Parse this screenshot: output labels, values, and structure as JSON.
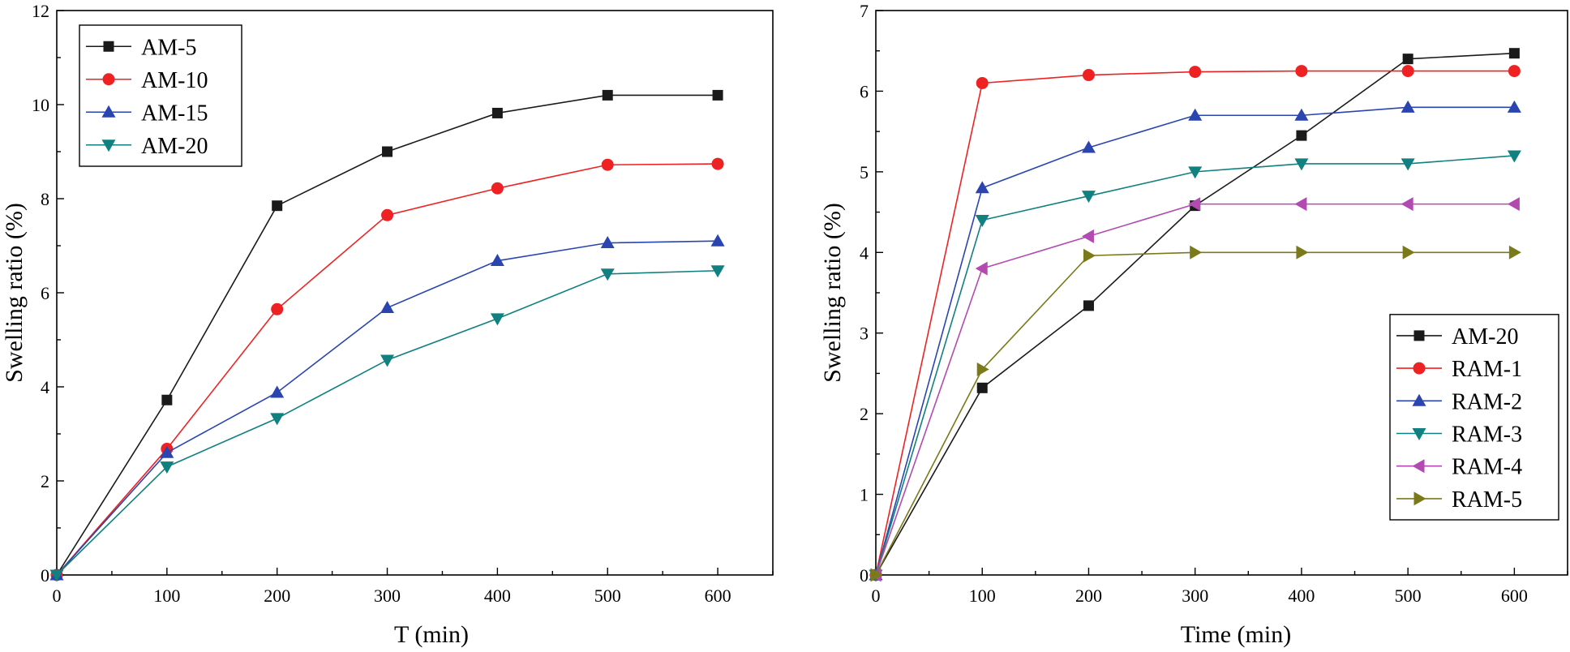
{
  "chart_data": [
    {
      "type": "line",
      "xlabel": "T (min)",
      "ylabel": "Swelling ratio (%)",
      "xlim": [
        0,
        650
      ],
      "ylim": [
        0,
        12
      ],
      "xticks": [
        "0",
        "100",
        "200",
        "300",
        "400",
        "500",
        "600"
      ],
      "yticks": [
        "0",
        "2",
        "4",
        "6",
        "8",
        "10",
        "12"
      ],
      "legend_position": "top-left",
      "grid": false,
      "x": [
        0,
        100,
        200,
        300,
        400,
        500,
        600
      ],
      "series": [
        {
          "name": "AM-5",
          "color": "#1a1a1a",
          "marker": "square",
          "values": [
            0,
            3.72,
            7.85,
            9.0,
            9.82,
            10.2,
            10.2
          ]
        },
        {
          "name": "AM-10",
          "color": "#ee2222",
          "marker": "circle",
          "values": [
            0,
            2.68,
            5.65,
            7.65,
            8.22,
            8.72,
            8.74
          ]
        },
        {
          "name": "AM-15",
          "color": "#2a45b0",
          "marker": "triangle-up",
          "values": [
            0,
            2.6,
            3.88,
            5.68,
            6.68,
            7.06,
            7.1
          ]
        },
        {
          "name": "AM-20",
          "color": "#108080",
          "marker": "triangle-down",
          "values": [
            0,
            2.3,
            3.33,
            4.57,
            5.45,
            6.4,
            6.47
          ]
        }
      ]
    },
    {
      "type": "line",
      "xlabel": "Time (min)",
      "ylabel": "Swelling ratio (%)",
      "xlim": [
        0,
        650
      ],
      "ylim": [
        0,
        7
      ],
      "xticks": [
        "0",
        "100",
        "200",
        "300",
        "400",
        "500",
        "600"
      ],
      "yticks": [
        "0",
        "1",
        "2",
        "3",
        "4",
        "5",
        "6",
        "7"
      ],
      "legend_position": "bottom-right",
      "grid": false,
      "x": [
        0,
        100,
        200,
        300,
        400,
        500,
        600
      ],
      "series": [
        {
          "name": "AM-20",
          "color": "#1a1a1a",
          "marker": "square",
          "values": [
            0,
            2.32,
            3.34,
            4.58,
            5.45,
            6.4,
            6.47
          ]
        },
        {
          "name": "RAM-1",
          "color": "#ee2222",
          "marker": "circle",
          "values": [
            0,
            6.1,
            6.2,
            6.24,
            6.25,
            6.25,
            6.25
          ]
        },
        {
          "name": "RAM-2",
          "color": "#2a45b0",
          "marker": "triangle-up",
          "values": [
            0,
            4.8,
            5.3,
            5.7,
            5.7,
            5.8,
            5.8
          ]
        },
        {
          "name": "RAM-3",
          "color": "#108080",
          "marker": "triangle-down",
          "values": [
            0,
            4.4,
            4.7,
            5.0,
            5.1,
            5.1,
            5.2
          ]
        },
        {
          "name": "RAM-4",
          "color": "#b24ab2",
          "marker": "triangle-left",
          "values": [
            0,
            3.8,
            4.2,
            4.6,
            4.6,
            4.6,
            4.6
          ]
        },
        {
          "name": "RAM-5",
          "color": "#7a7a1a",
          "marker": "triangle-right",
          "values": [
            0,
            2.55,
            3.96,
            4.0,
            4.0,
            4.0,
            4.0
          ]
        }
      ]
    }
  ]
}
